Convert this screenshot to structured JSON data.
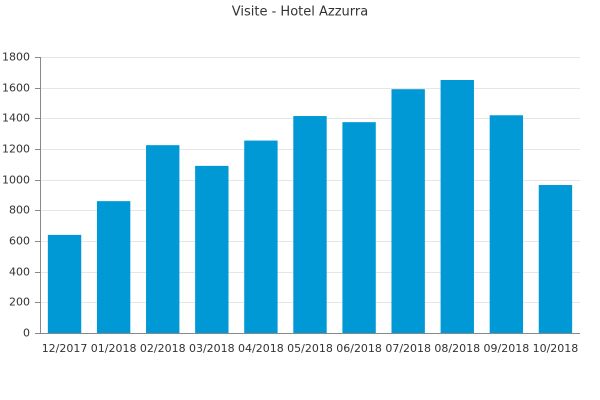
{
  "chart_data": {
    "type": "bar",
    "title": "Visite - Hotel Azzurra",
    "categories": [
      "12/2017",
      "01/2018",
      "02/2018",
      "03/2018",
      "04/2018",
      "05/2018",
      "06/2018",
      "07/2018",
      "08/2018",
      "09/2018",
      "10/2018"
    ],
    "values": [
      640,
      860,
      1225,
      1090,
      1255,
      1415,
      1375,
      1590,
      1650,
      1420,
      965
    ],
    "color": "#0099d6",
    "ylim": [
      0,
      1800
    ],
    "yticks": [
      0,
      200,
      400,
      600,
      800,
      1000,
      1200,
      1400,
      1600,
      1800
    ],
    "grid": true
  }
}
